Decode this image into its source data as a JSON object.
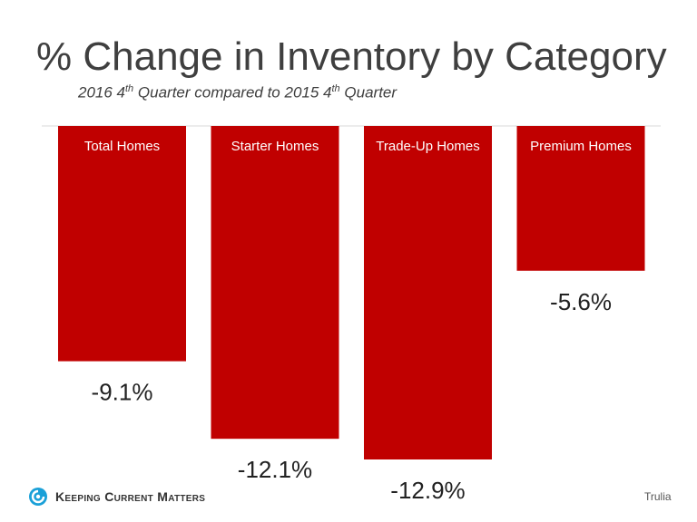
{
  "title": "% Change in Inventory by Category",
  "subtitle": {
    "part1": "2016 4",
    "sup1": "th",
    "part2": " Quarter compared to 2015 4",
    "sup2": "th",
    "part3": " Quarter"
  },
  "chart_data": {
    "type": "bar",
    "categories": [
      "Total Homes",
      "Starter Homes",
      "Trade-Up Homes",
      "Premium Homes"
    ],
    "values": [
      -9.1,
      -12.1,
      -12.9,
      -5.6
    ],
    "value_labels": [
      "-9.1%",
      "-12.1%",
      "-12.9%",
      "-5.6%"
    ],
    "bar_color": "#c00000",
    "category_label_color": "#ffffff",
    "ylim": [
      -12.9,
      0
    ],
    "grid": false,
    "legend": "none"
  },
  "logo": {
    "icon": "kcm-circle-logo-icon",
    "text": "Keeping Current Matters",
    "color": "#1aa0d8"
  },
  "source": "Trulia"
}
